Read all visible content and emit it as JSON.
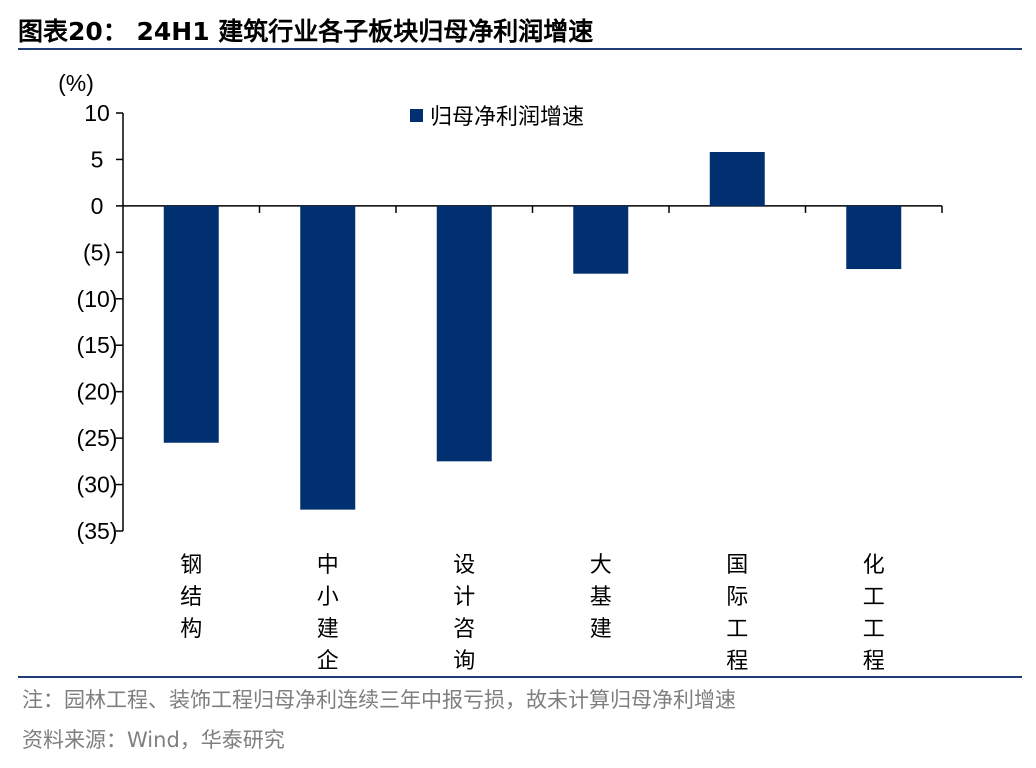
{
  "header": {
    "title": "图表20：  24H1 建筑行业各子板块归母净利润增速"
  },
  "footer": {
    "note": "注：园林工程、装饰工程归母净利连续三年中报亏损，故未计算归母净利增速",
    "source": "资料来源：Wind，华泰研究"
  },
  "chart_data": {
    "type": "bar",
    "unit_label": "(%)",
    "categories": [
      "钢结构",
      "中小建企",
      "设计咨询",
      "大基建",
      "国际工程",
      "化工工程"
    ],
    "series": [
      {
        "name": "归母净利润增速",
        "color": "#003070",
        "values": [
          -25.5,
          -32.7,
          -27.5,
          -7.3,
          5.8,
          -6.8
        ]
      }
    ],
    "ylim": [
      -35,
      10
    ],
    "yticks": [
      10,
      5,
      0,
      -5,
      -10,
      -15,
      -20,
      -25,
      -30,
      -35
    ],
    "ytick_labels": [
      "10",
      "5",
      "0",
      "(5)",
      "(10)",
      "(15)",
      "(20)",
      "(25)",
      "(30)",
      "(35)"
    ],
    "legend_position": "top-center",
    "grid": false
  }
}
